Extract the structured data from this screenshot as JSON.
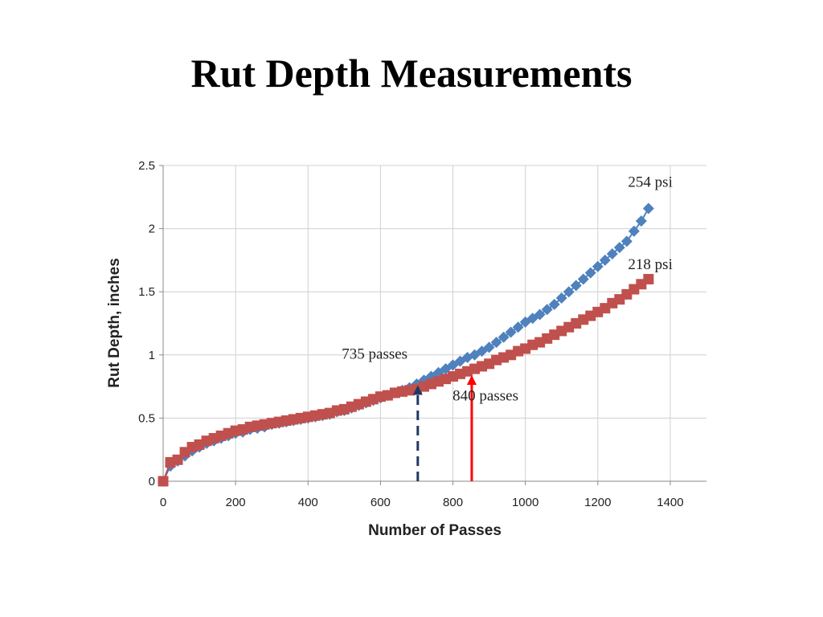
{
  "slide": {
    "title": "Rut Depth Measurements"
  },
  "chart_data": {
    "type": "scatter",
    "title": "",
    "xlabel": "Number of Passes",
    "ylabel": "Rut Depth, inches",
    "xlim": [
      0,
      1500
    ],
    "ylim": [
      0,
      2.5
    ],
    "xticks": [
      0,
      200,
      400,
      600,
      800,
      1000,
      1200,
      1400
    ],
    "yticks": [
      0,
      0.5,
      1,
      1.5,
      2,
      2.5
    ],
    "ytick_labels": [
      "0",
      "0.5",
      "1",
      "1.5",
      "2",
      "2.5"
    ],
    "grid": true,
    "series": [
      {
        "name": "254 psi",
        "color": "#4F81BD",
        "marker": "diamond",
        "x": [
          0,
          20,
          40,
          60,
          80,
          100,
          120,
          140,
          160,
          180,
          200,
          220,
          240,
          260,
          280,
          300,
          320,
          340,
          360,
          380,
          400,
          420,
          440,
          460,
          480,
          500,
          520,
          540,
          560,
          580,
          600,
          620,
          640,
          660,
          680,
          700,
          720,
          740,
          760,
          780,
          800,
          820,
          840,
          860,
          880,
          900,
          920,
          940,
          960,
          980,
          1000,
          1020,
          1040,
          1060,
          1080,
          1100,
          1120,
          1140,
          1160,
          1180,
          1200,
          1220,
          1240,
          1260,
          1280,
          1300,
          1320,
          1340
        ],
        "y": [
          0.0,
          0.12,
          0.16,
          0.2,
          0.24,
          0.27,
          0.3,
          0.32,
          0.34,
          0.36,
          0.38,
          0.39,
          0.41,
          0.42,
          0.43,
          0.45,
          0.46,
          0.47,
          0.48,
          0.49,
          0.5,
          0.51,
          0.52,
          0.53,
          0.55,
          0.56,
          0.58,
          0.6,
          0.62,
          0.64,
          0.66,
          0.68,
          0.7,
          0.72,
          0.74,
          0.77,
          0.8,
          0.83,
          0.86,
          0.89,
          0.92,
          0.95,
          0.98,
          1.0,
          1.03,
          1.06,
          1.1,
          1.14,
          1.18,
          1.22,
          1.26,
          1.29,
          1.32,
          1.36,
          1.4,
          1.45,
          1.5,
          1.55,
          1.6,
          1.65,
          1.7,
          1.75,
          1.8,
          1.85,
          1.9,
          1.98,
          2.06,
          2.16
        ]
      },
      {
        "name": "218 psi",
        "color": "#C0504D",
        "marker": "square",
        "x": [
          0,
          20,
          40,
          60,
          80,
          100,
          120,
          140,
          160,
          180,
          200,
          220,
          240,
          260,
          280,
          300,
          320,
          340,
          360,
          380,
          400,
          420,
          440,
          460,
          480,
          500,
          520,
          540,
          560,
          580,
          600,
          620,
          640,
          660,
          680,
          700,
          720,
          740,
          760,
          780,
          800,
          820,
          840,
          860,
          880,
          900,
          920,
          940,
          960,
          980,
          1000,
          1020,
          1040,
          1060,
          1080,
          1100,
          1120,
          1140,
          1160,
          1180,
          1200,
          1220,
          1240,
          1260,
          1280,
          1300,
          1320,
          1340
        ],
        "y": [
          0.0,
          0.15,
          0.17,
          0.23,
          0.27,
          0.29,
          0.32,
          0.34,
          0.36,
          0.38,
          0.4,
          0.41,
          0.43,
          0.44,
          0.45,
          0.46,
          0.47,
          0.48,
          0.49,
          0.5,
          0.51,
          0.52,
          0.53,
          0.54,
          0.56,
          0.57,
          0.59,
          0.61,
          0.63,
          0.65,
          0.67,
          0.68,
          0.7,
          0.71,
          0.72,
          0.73,
          0.75,
          0.77,
          0.79,
          0.81,
          0.83,
          0.85,
          0.87,
          0.89,
          0.91,
          0.93,
          0.96,
          0.98,
          1.0,
          1.03,
          1.05,
          1.08,
          1.1,
          1.13,
          1.16,
          1.19,
          1.22,
          1.25,
          1.28,
          1.31,
          1.34,
          1.37,
          1.41,
          1.44,
          1.48,
          1.52,
          1.56,
          1.6
        ]
      }
    ],
    "series_labels": [
      {
        "text": "254 psi",
        "x": 1345,
        "y": 2.33
      },
      {
        "text": "218 psi",
        "x": 1345,
        "y": 1.68
      }
    ],
    "annotations": [
      {
        "text": "735 passes",
        "x": 584,
        "y": 0.97
      },
      {
        "text": "840 passes",
        "x": 890,
        "y": 0.64
      }
    ],
    "arrows": [
      {
        "name": "735-passes-arrow",
        "x": 703,
        "y_from": 0,
        "y_to": 0.77,
        "color": "#1F3864",
        "style": "dashed"
      },
      {
        "name": "840-passes-arrow",
        "x": 852,
        "y_from": 0,
        "y_to": 0.85,
        "color": "#FF0000",
        "style": "solid"
      }
    ]
  }
}
